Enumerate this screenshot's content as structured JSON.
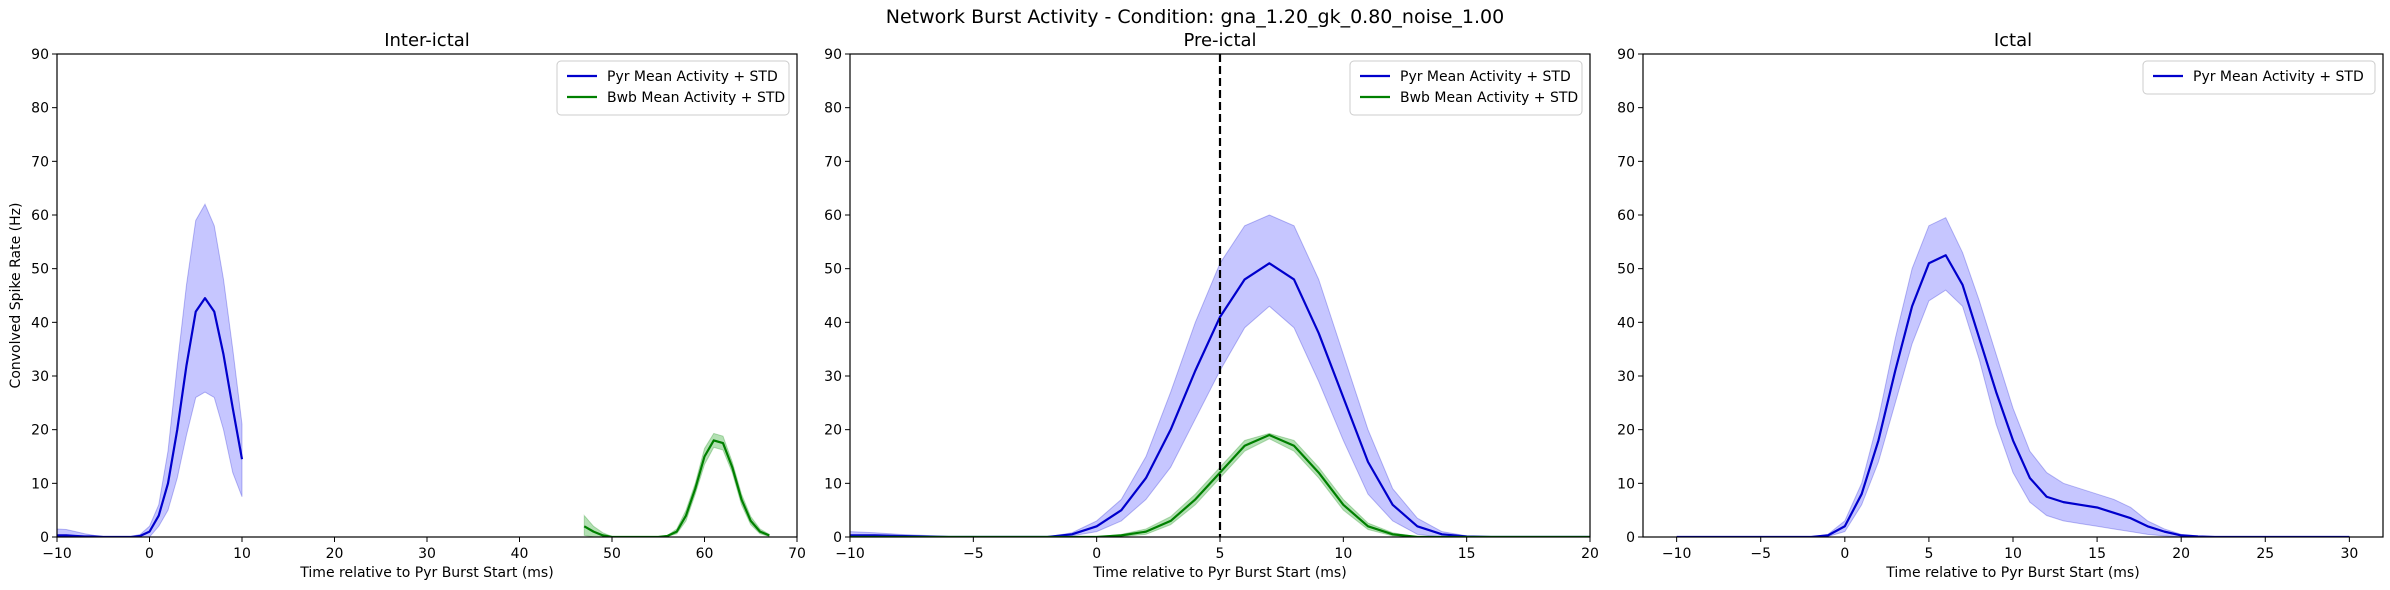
{
  "figure": {
    "title": "Network Burst Activity - Condition: gna_1.20_gk_0.80_noise_1.00",
    "colors": {
      "pyr": "#0000cc",
      "pyr_fill": "#b3b3ff",
      "bwb": "#008000",
      "bwb_fill": "#99d699"
    }
  },
  "chart_data": [
    {
      "type": "line",
      "title": "Inter-ictal",
      "xlabel": "Time relative to Pyr Burst Start (ms)",
      "ylabel": "Convolved Spike Rate (Hz)",
      "xlim": [
        -10,
        70
      ],
      "ylim": [
        0,
        90
      ],
      "xticks": [
        -10,
        0,
        10,
        20,
        30,
        40,
        50,
        60,
        70
      ],
      "yticks": [
        0,
        10,
        20,
        30,
        40,
        50,
        60,
        70,
        80,
        90
      ],
      "legend_position": "top-right",
      "vline": null,
      "series": [
        {
          "name": "Pyr Mean Activity + STD",
          "color": "#0000cc",
          "fill": "#b3b3ff",
          "x": [
            -10,
            -9,
            -8,
            -7,
            -6,
            -5,
            -4,
            -3,
            -2,
            -1,
            0,
            1,
            2,
            3,
            4,
            5,
            6,
            7,
            8,
            9,
            10
          ],
          "mean": [
            0.3,
            0.3,
            0.2,
            0.1,
            0.1,
            0,
            0,
            0,
            0,
            0.2,
            1,
            4,
            10,
            20,
            32,
            42,
            44.5,
            42,
            34,
            24,
            14.5
          ],
          "upper": [
            1.5,
            1.4,
            1,
            0.6,
            0.3,
            0.1,
            0.1,
            0.1,
            0.1,
            0.5,
            2,
            6,
            16,
            32,
            47,
            59,
            62,
            58,
            48,
            35,
            21
          ],
          "lower": [
            0,
            0,
            0,
            0,
            0,
            0,
            0,
            0,
            0,
            0,
            0,
            2,
            5,
            11,
            19,
            26,
            27,
            26,
            20,
            12,
            7.5
          ]
        },
        {
          "name": "Bwb Mean Activity + STD",
          "color": "#008000",
          "fill": "#99d699",
          "x": [
            47,
            48,
            49,
            50,
            51,
            52,
            53,
            54,
            55,
            56,
            57,
            58,
            59,
            60,
            61,
            62,
            63,
            64,
            65,
            66,
            67
          ],
          "mean": [
            2,
            1,
            0.3,
            0,
            0,
            0,
            0,
            0,
            0,
            0.2,
            1,
            4,
            9,
            15,
            18,
            17.5,
            13,
            7,
            3,
            1,
            0.3
          ],
          "upper": [
            4,
            2,
            0.8,
            0.1,
            0,
            0,
            0,
            0,
            0,
            0.3,
            1.5,
            5,
            10,
            16.5,
            19.3,
            18.8,
            14,
            8,
            3.8,
            1.5,
            0.5
          ],
          "lower": [
            0.3,
            0,
            0,
            0,
            0,
            0,
            0,
            0,
            0,
            0.1,
            0.6,
            3,
            8,
            13.5,
            16.7,
            16.2,
            12,
            6,
            2.3,
            0.6,
            0.1
          ]
        }
      ]
    },
    {
      "type": "line",
      "title": "Pre-ictal",
      "xlabel": "Time relative to Pyr Burst Start (ms)",
      "ylabel": "",
      "xlim": [
        -10,
        20
      ],
      "ylim": [
        0,
        90
      ],
      "xticks": [
        -10,
        -5,
        0,
        5,
        10,
        15,
        20
      ],
      "yticks": [
        0,
        10,
        20,
        30,
        40,
        50,
        60,
        70,
        80,
        90
      ],
      "legend_position": "top-right",
      "vline": 5,
      "series": [
        {
          "name": "Pyr Mean Activity + STD",
          "color": "#0000cc",
          "fill": "#b3b3ff",
          "x": [
            -10,
            -9,
            -8,
            -7,
            -6,
            -5,
            -4,
            -3,
            -2,
            -1,
            0,
            1,
            2,
            3,
            4,
            5,
            6,
            7,
            8,
            9,
            10,
            11,
            12,
            13,
            14,
            15,
            16,
            17,
            18,
            19,
            20
          ],
          "mean": [
            0.3,
            0.3,
            0.2,
            0.1,
            0,
            0,
            0,
            0,
            0,
            0.5,
            2,
            5,
            11,
            20,
            31,
            41,
            48,
            51,
            48,
            38,
            26,
            14,
            6,
            2,
            0.5,
            0.1,
            0,
            0,
            0,
            0,
            0
          ],
          "upper": [
            1,
            0.8,
            0.5,
            0.3,
            0.1,
            0,
            0,
            0,
            0,
            0.8,
            3,
            7,
            15,
            27,
            40,
            51,
            58,
            60,
            58,
            48,
            34,
            20,
            9,
            3.5,
            1,
            0.2,
            0,
            0,
            0,
            0,
            0
          ],
          "lower": [
            0,
            0,
            0,
            0,
            0,
            0,
            0,
            0,
            0,
            0.2,
            1,
            3,
            7,
            13,
            22,
            31,
            39,
            43,
            39,
            29,
            18,
            8,
            3,
            0.5,
            0,
            0,
            0,
            0,
            0,
            0,
            0
          ]
        },
        {
          "name": "Bwb Mean Activity + STD",
          "color": "#008000",
          "fill": "#99d699",
          "x": [
            -10,
            -9,
            -8,
            -7,
            -6,
            -5,
            -4,
            -3,
            -2,
            -1,
            0,
            1,
            2,
            3,
            4,
            5,
            6,
            7,
            8,
            9,
            10,
            11,
            12,
            13,
            14,
            15,
            16,
            17,
            18,
            19,
            20
          ],
          "mean": [
            0,
            0,
            0,
            0,
            0,
            0,
            0,
            0,
            0,
            0,
            0,
            0.3,
            1,
            3,
            7,
            12,
            17,
            19,
            17,
            12,
            6,
            2,
            0.5,
            0,
            0,
            0,
            0,
            0,
            0,
            0,
            0
          ],
          "upper": [
            0,
            0,
            0,
            0,
            0,
            0,
            0,
            0,
            0,
            0,
            0,
            0.5,
            1.5,
            3.8,
            8,
            13,
            18,
            19.3,
            18,
            13,
            7,
            2.6,
            0.8,
            0,
            0,
            0,
            0,
            0,
            0,
            0,
            0
          ],
          "lower": [
            0,
            0,
            0,
            0,
            0,
            0,
            0,
            0,
            0,
            0,
            0,
            0.1,
            0.5,
            2.3,
            6,
            11,
            16,
            18.3,
            16,
            11,
            5,
            1.4,
            0.2,
            0,
            0,
            0,
            0,
            0,
            0,
            0,
            0
          ]
        }
      ]
    },
    {
      "type": "line",
      "title": "Ictal",
      "xlabel": "Time relative to Pyr Burst Start (ms)",
      "ylabel": "",
      "xlim": [
        -12,
        32
      ],
      "ylim": [
        0,
        90
      ],
      "xticks": [
        -10,
        -5,
        0,
        5,
        10,
        15,
        20,
        25,
        30
      ],
      "yticks": [
        0,
        10,
        20,
        30,
        40,
        50,
        60,
        70,
        80,
        90
      ],
      "legend_position": "top-right",
      "vline": null,
      "series": [
        {
          "name": "Pyr Mean Activity + STD",
          "color": "#0000cc",
          "fill": "#b3b3ff",
          "x": [
            -10,
            -9,
            -8,
            -7,
            -6,
            -5,
            -4,
            -3,
            -2,
            -1,
            0,
            1,
            2,
            3,
            4,
            5,
            6,
            7,
            8,
            9,
            10,
            11,
            12,
            13,
            14,
            15,
            16,
            17,
            18,
            19,
            20,
            21,
            22,
            23,
            24,
            25,
            26,
            27,
            28,
            29,
            30
          ],
          "mean": [
            0,
            0,
            0,
            0,
            0,
            0,
            0,
            0,
            0,
            0.3,
            2,
            8,
            18,
            31,
            43,
            51,
            52.5,
            47,
            37,
            27,
            18,
            11,
            7.5,
            6.5,
            6,
            5.5,
            4.5,
            3.5,
            2,
            1,
            0.3,
            0.1,
            0,
            0,
            0,
            0,
            0,
            0,
            0,
            0,
            0
          ],
          "upper": [
            0,
            0,
            0,
            0,
            0,
            0,
            0,
            0,
            0,
            0.5,
            3,
            10,
            22,
            37,
            50,
            58,
            59.5,
            53,
            44,
            34,
            24,
            16,
            12,
            10,
            9,
            8,
            7,
            5.5,
            3,
            1.5,
            0.5,
            0.2,
            0,
            0,
            0,
            0,
            0,
            0,
            0,
            0,
            0
          ],
          "lower": [
            0,
            0,
            0,
            0,
            0,
            0,
            0,
            0,
            0,
            0.1,
            1,
            6,
            14,
            25,
            36,
            44,
            46,
            43,
            33,
            21,
            12,
            6.5,
            4,
            3,
            2.5,
            2,
            1.5,
            1,
            0.5,
            0.2,
            0,
            0,
            0,
            0,
            0,
            0,
            0,
            0,
            0,
            0,
            0
          ]
        }
      ]
    }
  ]
}
